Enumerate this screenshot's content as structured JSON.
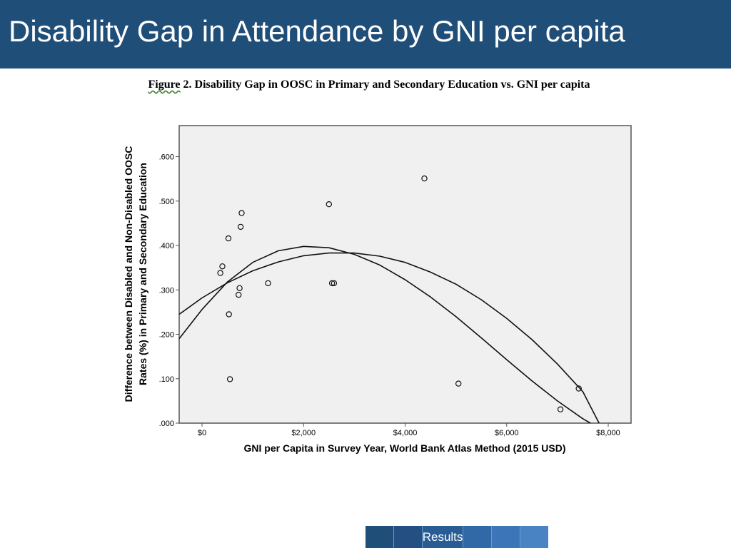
{
  "header": {
    "title": "Disability Gap in Attendance by GNI per capita"
  },
  "caption": {
    "label": "Figure",
    "text": " 2. Disability  Gap in  OOSC in Primary  and Secondary  Education  vs. GNI per capita"
  },
  "footer": {
    "segments": [
      "",
      "",
      "Results",
      "",
      "",
      ""
    ]
  },
  "colors": {
    "header": "#1f4e79",
    "plot_bg": "#f0f0f0"
  },
  "chart_data": {
    "type": "scatter",
    "title": "Figure 2. Disability Gap in OOSC in Primary and Secondary Education vs. GNI per capita",
    "xlabel": "GNI per Capita in Survey Year, World Bank Atlas Method (2015 USD)",
    "ylabel_lines": [
      "Difference between Disabled and Non-Disabled OOSC",
      "Rates (%) in Primary and Secondary Education"
    ],
    "xlim": [
      -450,
      8450
    ],
    "ylim": [
      0,
      0.67
    ],
    "x_ticks": [
      0,
      2000,
      4000,
      6000,
      8000
    ],
    "x_tick_labels": [
      "$0",
      "$2,000",
      "$4,000",
      "$6,000",
      "$8,000"
    ],
    "y_ticks": [
      0,
      0.1,
      0.2,
      0.3,
      0.4,
      0.5,
      0.6
    ],
    "y_tick_labels": [
      ".000",
      ".100",
      ".200",
      ".300",
      ".400",
      ".500",
      ".600"
    ],
    "grid": false,
    "points": [
      {
        "x": 360,
        "y": 0.338
      },
      {
        "x": 400,
        "y": 0.353
      },
      {
        "x": 520,
        "y": 0.416
      },
      {
        "x": 530,
        "y": 0.245
      },
      {
        "x": 550,
        "y": 0.099
      },
      {
        "x": 720,
        "y": 0.289
      },
      {
        "x": 740,
        "y": 0.304
      },
      {
        "x": 760,
        "y": 0.442
      },
      {
        "x": 780,
        "y": 0.473
      },
      {
        "x": 1300,
        "y": 0.315
      },
      {
        "x": 2500,
        "y": 0.493
      },
      {
        "x": 2560,
        "y": 0.315
      },
      {
        "x": 2600,
        "y": 0.315
      },
      {
        "x": 4380,
        "y": 0.551
      },
      {
        "x": 5050,
        "y": 0.089
      },
      {
        "x": 7060,
        "y": 0.031
      },
      {
        "x": 7420,
        "y": 0.078
      }
    ],
    "fit_lines": [
      {
        "kind": "quadratic",
        "x": [
          -450,
          0,
          500,
          1000,
          1500,
          2000,
          2500,
          3000,
          3500,
          4000,
          4500,
          5000,
          5500,
          6000,
          6500,
          7000,
          7500,
          7820
        ],
        "y": [
          0.245,
          0.282,
          0.316,
          0.343,
          0.363,
          0.377,
          0.383,
          0.383,
          0.376,
          0.362,
          0.34,
          0.313,
          0.278,
          0.236,
          0.188,
          0.133,
          0.071,
          0.0
        ]
      },
      {
        "kind": "cubic",
        "x": [
          -450,
          0,
          500,
          1000,
          1500,
          2000,
          2500,
          3000,
          3500,
          4000,
          4500,
          5000,
          5500,
          6000,
          6500,
          7000,
          7500,
          7650
        ],
        "y": [
          0.19,
          0.256,
          0.318,
          0.362,
          0.388,
          0.398,
          0.395,
          0.38,
          0.356,
          0.323,
          0.284,
          0.24,
          0.192,
          0.143,
          0.095,
          0.05,
          0.01,
          0.0
        ]
      }
    ]
  }
}
